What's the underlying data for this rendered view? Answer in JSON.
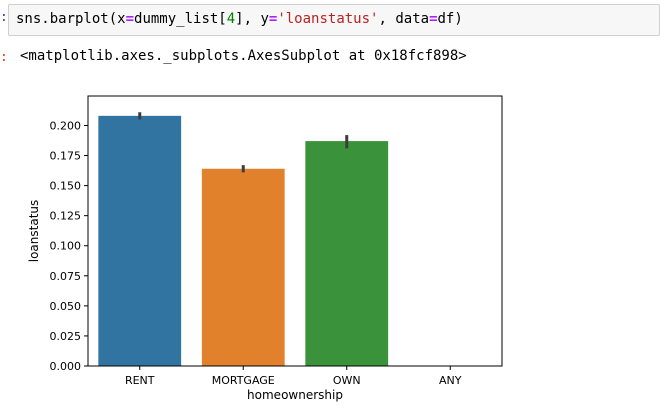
{
  "input_prompt": ":",
  "output_prompt": ":",
  "code_cell": {
    "parts": {
      "p1": "sns.barplot(x",
      "p2": "=",
      "p3": "dummy_list[",
      "p4": "4",
      "p5": "], y",
      "p6": "=",
      "p7": "'loanstatus'",
      "p8": ", data",
      "p9": "=",
      "p10": "df)"
    }
  },
  "output_text": "<matplotlib.axes._subplots.AxesSubplot at 0x18fcf898>",
  "colors": {
    "code_bg": "#f7f7f7",
    "keyword_op": "#aa22ff",
    "number": "#008000",
    "string": "#ba2121",
    "error_bar": "#3d3d3d"
  },
  "chart_data": {
    "type": "bar",
    "categories": [
      "RENT",
      "MORTGAGE",
      "OWN",
      "ANY"
    ],
    "values": [
      0.208,
      0.164,
      0.187,
      null
    ],
    "ci": [
      [
        0.205,
        0.211
      ],
      [
        0.161,
        0.167
      ],
      [
        0.181,
        0.192
      ],
      null
    ],
    "colors": [
      "#3274a1",
      "#e1812c",
      "#3a923a",
      "#c03d3e"
    ],
    "title": "",
    "xlabel": "homeownership",
    "ylabel": "loanstatus",
    "ylim": [
      0,
      0.2245
    ],
    "yticks": [
      0.0,
      0.025,
      0.05,
      0.075,
      0.1,
      0.125,
      0.15,
      0.175,
      0.2
    ],
    "ytick_labels": [
      "0.000",
      "0.025",
      "0.050",
      "0.075",
      "0.100",
      "0.125",
      "0.150",
      "0.175",
      "0.200"
    ],
    "grid": false,
    "legend": "none"
  }
}
